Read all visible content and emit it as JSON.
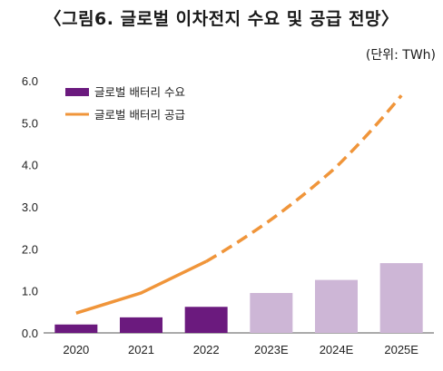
{
  "title": "〈그림6. 글로벌 이차전지 수요 및 공급 전망〉",
  "unit": "(단위: TWh)",
  "chart_data": {
    "type": "bar",
    "categories": [
      "2020",
      "2021",
      "2022",
      "2023E",
      "2024E",
      "2025E"
    ],
    "series": [
      {
        "name": "글로벌 배터리 수요",
        "type": "bar",
        "values": [
          0.2,
          0.37,
          0.62,
          0.95,
          1.26,
          1.66
        ],
        "colors": [
          "#6b1a7e",
          "#6b1a7e",
          "#6b1a7e",
          "#cdb6d6",
          "#cdb6d6",
          "#cdb6d6"
        ]
      },
      {
        "name": "글로벌 배터리 공급",
        "type": "line",
        "values": [
          0.47,
          0.95,
          1.7,
          2.7,
          3.95,
          5.65
        ],
        "color": "#f0953a",
        "dashed_from_index": 2
      }
    ],
    "yticks": [
      "0.0",
      "1.0",
      "2.0",
      "3.0",
      "4.0",
      "5.0",
      "6.0"
    ],
    "ylim": [
      0,
      6
    ],
    "legend": "top-left",
    "grid": false
  }
}
